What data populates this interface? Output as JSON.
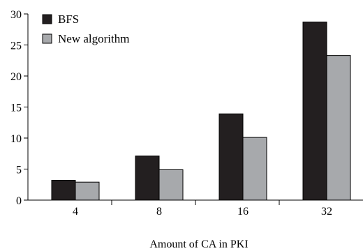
{
  "chart_data": {
    "type": "bar",
    "categories": [
      "4",
      "8",
      "16",
      "32"
    ],
    "series": [
      {
        "name": "BFS",
        "values": [
          3.2,
          7.1,
          13.9,
          28.7
        ],
        "color": "#231f20"
      },
      {
        "name": "New algorithm",
        "values": [
          2.9,
          4.9,
          10.1,
          23.3
        ],
        "color": "#a7a9ac"
      }
    ],
    "xlabel": "Amount of CA in PKI",
    "ylabel": "",
    "ylim": [
      0,
      30
    ],
    "yticks": [
      0,
      5,
      10,
      15,
      20,
      25,
      30
    ],
    "grid": false,
    "legend_position": "top-left"
  }
}
